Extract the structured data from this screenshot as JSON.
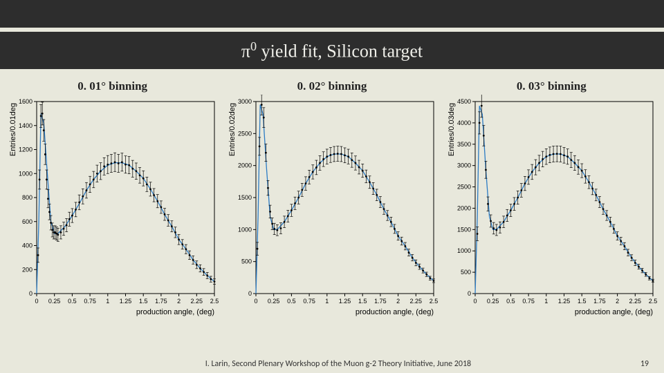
{
  "title_prefix": "π",
  "title_sup": "0",
  "title_rest": " yield fit, Silicon target",
  "footer_text": "I. Larin, Second Plenary Workshop of the Muon g-2 Theory Initiative, June 2018",
  "page_number": "19",
  "common": {
    "xlabel": "production angle, (deg)",
    "xlim": [
      0,
      2.5
    ],
    "xticks": [
      0,
      0.25,
      0.5,
      0.75,
      1,
      1.25,
      1.5,
      1.75,
      2,
      2.25,
      2.5
    ],
    "xticklabels": [
      "0",
      "0.25",
      "0.5",
      "0.75",
      "1",
      "1.25",
      "1.5",
      "1.75",
      "2",
      "2.25",
      "2.5"
    ],
    "fit_color": "#2b7bc4",
    "point_color": "#000000",
    "bg": "#e8e8dc",
    "fontsize_tick": 9,
    "fontsize_label": 11,
    "marker_size": 1.4
  },
  "panels": [
    {
      "title": "0. 01° binning",
      "ylabel": "Entries/0.01deg",
      "ylim": [
        0,
        1600
      ],
      "yticks": [
        0,
        200,
        400,
        600,
        800,
        1000,
        1200,
        1400,
        1600
      ],
      "yticklabels": [
        "0",
        "200",
        "400",
        "600",
        "800",
        "1000",
        "1200",
        "1400",
        "1600"
      ],
      "fit": [
        [
          0,
          0
        ],
        [
          0.03,
          600
        ],
        [
          0.06,
          1500
        ],
        [
          0.1,
          1420
        ],
        [
          0.15,
          1000
        ],
        [
          0.2,
          600
        ],
        [
          0.25,
          500
        ],
        [
          0.3,
          500
        ],
        [
          0.4,
          560
        ],
        [
          0.5,
          650
        ],
        [
          0.6,
          750
        ],
        [
          0.7,
          860
        ],
        [
          0.8,
          950
        ],
        [
          0.9,
          1020
        ],
        [
          1.0,
          1070
        ],
        [
          1.1,
          1090
        ],
        [
          1.2,
          1090
        ],
        [
          1.3,
          1070
        ],
        [
          1.4,
          1020
        ],
        [
          1.5,
          960
        ],
        [
          1.6,
          870
        ],
        [
          1.7,
          770
        ],
        [
          1.8,
          660
        ],
        [
          1.9,
          560
        ],
        [
          2.0,
          450
        ],
        [
          2.1,
          370
        ],
        [
          2.2,
          280
        ],
        [
          2.3,
          210
        ],
        [
          2.4,
          150
        ],
        [
          2.5,
          100
        ]
      ],
      "data": [
        [
          0.02,
          320,
          60
        ],
        [
          0.04,
          950,
          80
        ],
        [
          0.06,
          1480,
          95
        ],
        [
          0.08,
          1500,
          95
        ],
        [
          0.1,
          1360,
          90
        ],
        [
          0.12,
          1160,
          85
        ],
        [
          0.14,
          950,
          80
        ],
        [
          0.16,
          790,
          75
        ],
        [
          0.18,
          680,
          65
        ],
        [
          0.2,
          590,
          60
        ],
        [
          0.22,
          530,
          58
        ],
        [
          0.24,
          510,
          55
        ],
        [
          0.26,
          510,
          55
        ],
        [
          0.28,
          500,
          55
        ],
        [
          0.3,
          490,
          55
        ],
        [
          0.34,
          510,
          55
        ],
        [
          0.38,
          540,
          55
        ],
        [
          0.42,
          570,
          55
        ],
        [
          0.46,
          620,
          58
        ],
        [
          0.5,
          650,
          58
        ],
        [
          0.55,
          700,
          60
        ],
        [
          0.6,
          760,
          62
        ],
        [
          0.65,
          810,
          63
        ],
        [
          0.7,
          860,
          65
        ],
        [
          0.75,
          910,
          67
        ],
        [
          0.8,
          950,
          68
        ],
        [
          0.85,
          1000,
          70
        ],
        [
          0.9,
          1020,
          70
        ],
        [
          0.95,
          1060,
          72
        ],
        [
          1.0,
          1075,
          75
        ],
        [
          1.05,
          1085,
          75
        ],
        [
          1.1,
          1095,
          78
        ],
        [
          1.15,
          1085,
          75
        ],
        [
          1.2,
          1095,
          75
        ],
        [
          1.25,
          1075,
          72
        ],
        [
          1.3,
          1070,
          72
        ],
        [
          1.35,
          1040,
          70
        ],
        [
          1.4,
          1020,
          68
        ],
        [
          1.45,
          985,
          65
        ],
        [
          1.5,
          960,
          63
        ],
        [
          1.55,
          910,
          60
        ],
        [
          1.6,
          870,
          58
        ],
        [
          1.65,
          820,
          55
        ],
        [
          1.7,
          770,
          55
        ],
        [
          1.75,
          720,
          52
        ],
        [
          1.8,
          660,
          50
        ],
        [
          1.85,
          610,
          48
        ],
        [
          1.9,
          560,
          46
        ],
        [
          1.95,
          510,
          44
        ],
        [
          2.0,
          450,
          42
        ],
        [
          2.05,
          410,
          40
        ],
        [
          2.1,
          370,
          38
        ],
        [
          2.15,
          320,
          36
        ],
        [
          2.2,
          280,
          34
        ],
        [
          2.25,
          240,
          32
        ],
        [
          2.3,
          210,
          30
        ],
        [
          2.35,
          180,
          28
        ],
        [
          2.4,
          150,
          26
        ],
        [
          2.45,
          120,
          24
        ],
        [
          2.5,
          100,
          22
        ]
      ]
    },
    {
      "title": "0. 02° binning",
      "ylabel": "Entries/0.02deg",
      "ylim": [
        0,
        3000
      ],
      "yticks": [
        0,
        500,
        1000,
        1500,
        2000,
        2500,
        3000
      ],
      "yticklabels": [
        "0",
        "500",
        "1000",
        "1500",
        "2000",
        "2500",
        "3000"
      ],
      "fit": [
        [
          0,
          0
        ],
        [
          0.03,
          1200
        ],
        [
          0.06,
          2950
        ],
        [
          0.1,
          2800
        ],
        [
          0.15,
          1950
        ],
        [
          0.2,
          1200
        ],
        [
          0.25,
          1000
        ],
        [
          0.3,
          1000
        ],
        [
          0.4,
          1120
        ],
        [
          0.5,
          1300
        ],
        [
          0.6,
          1500
        ],
        [
          0.7,
          1720
        ],
        [
          0.8,
          1900
        ],
        [
          0.9,
          2040
        ],
        [
          1.0,
          2140
        ],
        [
          1.1,
          2180
        ],
        [
          1.2,
          2180
        ],
        [
          1.3,
          2140
        ],
        [
          1.4,
          2040
        ],
        [
          1.5,
          1920
        ],
        [
          1.6,
          1740
        ],
        [
          1.7,
          1540
        ],
        [
          1.8,
          1320
        ],
        [
          1.9,
          1120
        ],
        [
          2.0,
          900
        ],
        [
          2.1,
          740
        ],
        [
          2.2,
          560
        ],
        [
          2.3,
          420
        ],
        [
          2.4,
          300
        ],
        [
          2.5,
          200
        ]
      ],
      "data": [
        [
          0.02,
          700,
          100
        ],
        [
          0.05,
          2300,
          140
        ],
        [
          0.08,
          2950,
          160
        ],
        [
          0.11,
          2750,
          155
        ],
        [
          0.14,
          2200,
          135
        ],
        [
          0.17,
          1650,
          115
        ],
        [
          0.2,
          1280,
          100
        ],
        [
          0.23,
          1090,
          92
        ],
        [
          0.26,
          1010,
          88
        ],
        [
          0.3,
          990,
          85
        ],
        [
          0.35,
          1020,
          85
        ],
        [
          0.4,
          1120,
          90
        ],
        [
          0.45,
          1210,
          92
        ],
        [
          0.5,
          1300,
          95
        ],
        [
          0.55,
          1410,
          98
        ],
        [
          0.6,
          1500,
          100
        ],
        [
          0.65,
          1620,
          102
        ],
        [
          0.7,
          1720,
          105
        ],
        [
          0.75,
          1820,
          107
        ],
        [
          0.8,
          1900,
          110
        ],
        [
          0.85,
          1970,
          112
        ],
        [
          0.9,
          2040,
          113
        ],
        [
          0.95,
          2100,
          115
        ],
        [
          1.0,
          2140,
          116
        ],
        [
          1.05,
          2165,
          117
        ],
        [
          1.1,
          2180,
          118
        ],
        [
          1.15,
          2185,
          118
        ],
        [
          1.2,
          2180,
          118
        ],
        [
          1.25,
          2160,
          117
        ],
        [
          1.3,
          2140,
          115
        ],
        [
          1.35,
          2085,
          112
        ],
        [
          1.4,
          2040,
          110
        ],
        [
          1.45,
          1975,
          107
        ],
        [
          1.5,
          1920,
          104
        ],
        [
          1.55,
          1830,
          100
        ],
        [
          1.6,
          1740,
          97
        ],
        [
          1.65,
          1640,
          93
        ],
        [
          1.7,
          1540,
          90
        ],
        [
          1.75,
          1430,
          86
        ],
        [
          1.8,
          1320,
          82
        ],
        [
          1.85,
          1220,
          78
        ],
        [
          1.9,
          1120,
          74
        ],
        [
          1.95,
          1010,
          70
        ],
        [
          2.0,
          900,
          66
        ],
        [
          2.05,
          820,
          62
        ],
        [
          2.1,
          740,
          58
        ],
        [
          2.15,
          640,
          54
        ],
        [
          2.2,
          560,
          50
        ],
        [
          2.25,
          480,
          46
        ],
        [
          2.3,
          420,
          42
        ],
        [
          2.35,
          360,
          38
        ],
        [
          2.4,
          300,
          34
        ],
        [
          2.45,
          240,
          30
        ],
        [
          2.5,
          200,
          28
        ]
      ]
    },
    {
      "title": "0. 03° binning",
      "ylabel": "Entries/0.03deg",
      "ylim": [
        0,
        4500
      ],
      "yticks": [
        0,
        500,
        1000,
        1500,
        2000,
        2500,
        3000,
        3500,
        4000,
        4500
      ],
      "yticklabels": [
        "0",
        "500",
        "1000",
        "1500",
        "2000",
        "2500",
        "3000",
        "3500",
        "4000",
        "4500"
      ],
      "fit": [
        [
          0,
          0
        ],
        [
          0.03,
          1800
        ],
        [
          0.06,
          4400
        ],
        [
          0.1,
          4200
        ],
        [
          0.15,
          2900
        ],
        [
          0.2,
          1800
        ],
        [
          0.25,
          1500
        ],
        [
          0.3,
          1500
        ],
        [
          0.4,
          1680
        ],
        [
          0.5,
          1950
        ],
        [
          0.6,
          2250
        ],
        [
          0.7,
          2580
        ],
        [
          0.8,
          2850
        ],
        [
          0.9,
          3060
        ],
        [
          1.0,
          3210
        ],
        [
          1.1,
          3270
        ],
        [
          1.2,
          3270
        ],
        [
          1.3,
          3210
        ],
        [
          1.4,
          3060
        ],
        [
          1.5,
          2880
        ],
        [
          1.6,
          2610
        ],
        [
          1.7,
          2310
        ],
        [
          1.8,
          1980
        ],
        [
          1.9,
          1680
        ],
        [
          2.0,
          1350
        ],
        [
          2.1,
          1110
        ],
        [
          2.2,
          840
        ],
        [
          2.3,
          630
        ],
        [
          2.4,
          450
        ],
        [
          2.5,
          300
        ]
      ],
      "data": [
        [
          0.03,
          1400,
          160
        ],
        [
          0.06,
          4000,
          260
        ],
        [
          0.09,
          4400,
          270
        ],
        [
          0.12,
          3700,
          240
        ],
        [
          0.15,
          2900,
          200
        ],
        [
          0.18,
          2100,
          165
        ],
        [
          0.22,
          1700,
          145
        ],
        [
          0.26,
          1530,
          135
        ],
        [
          0.3,
          1490,
          130
        ],
        [
          0.35,
          1550,
          130
        ],
        [
          0.4,
          1680,
          135
        ],
        [
          0.45,
          1830,
          140
        ],
        [
          0.5,
          1950,
          145
        ],
        [
          0.55,
          2100,
          150
        ],
        [
          0.6,
          2250,
          155
        ],
        [
          0.65,
          2420,
          160
        ],
        [
          0.7,
          2580,
          165
        ],
        [
          0.75,
          2730,
          170
        ],
        [
          0.8,
          2850,
          175
        ],
        [
          0.85,
          2960,
          178
        ],
        [
          0.9,
          3060,
          180
        ],
        [
          0.95,
          3150,
          182
        ],
        [
          1.0,
          3210,
          183
        ],
        [
          1.05,
          3250,
          184
        ],
        [
          1.1,
          3270,
          185
        ],
        [
          1.15,
          3275,
          185
        ],
        [
          1.2,
          3270,
          185
        ],
        [
          1.25,
          3240,
          183
        ],
        [
          1.3,
          3210,
          180
        ],
        [
          1.35,
          3130,
          177
        ],
        [
          1.4,
          3060,
          173
        ],
        [
          1.45,
          2965,
          168
        ],
        [
          1.5,
          2880,
          163
        ],
        [
          1.55,
          2745,
          157
        ],
        [
          1.6,
          2610,
          150
        ],
        [
          1.65,
          2460,
          143
        ],
        [
          1.7,
          2310,
          137
        ],
        [
          1.75,
          2145,
          130
        ],
        [
          1.8,
          1980,
          123
        ],
        [
          1.85,
          1830,
          116
        ],
        [
          1.9,
          1680,
          110
        ],
        [
          1.95,
          1515,
          103
        ],
        [
          2.0,
          1350,
          96
        ],
        [
          2.05,
          1230,
          90
        ],
        [
          2.1,
          1110,
          84
        ],
        [
          2.15,
          960,
          77
        ],
        [
          2.2,
          840,
          70
        ],
        [
          2.25,
          720,
          64
        ],
        [
          2.3,
          630,
          58
        ],
        [
          2.35,
          540,
          52
        ],
        [
          2.4,
          450,
          46
        ],
        [
          2.45,
          360,
          40
        ],
        [
          2.5,
          300,
          36
        ]
      ]
    }
  ]
}
